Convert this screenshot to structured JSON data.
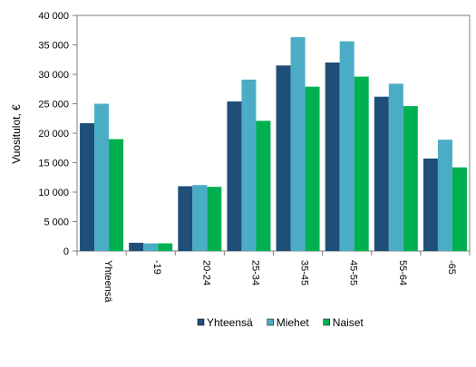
{
  "chart_data": {
    "type": "bar",
    "title": "",
    "xlabel": "",
    "ylabel": "Vuositulot, €",
    "ylim": [
      0,
      40000
    ],
    "yticks": [
      "0",
      "5 000",
      "10 000",
      "15 000",
      "20 000",
      "25 000",
      "30 000",
      "35 000",
      "40 000"
    ],
    "grid": false,
    "legend_position": "bottom",
    "categories": [
      "Yhteensä",
      "-19",
      "20-24",
      "25-34",
      "35-45",
      "45-55",
      "55-64",
      "-65"
    ],
    "series": [
      {
        "name": "Yhteensä",
        "color": "#1f4e79",
        "values": [
          21700,
          1400,
          11000,
          25400,
          31500,
          32000,
          26200,
          15700
        ]
      },
      {
        "name": "Miehet",
        "color": "#4bacc6",
        "values": [
          25000,
          1300,
          11200,
          29100,
          36300,
          35600,
          28400,
          18900
        ]
      },
      {
        "name": "Naiset",
        "color": "#00b050",
        "values": [
          19000,
          1300,
          10900,
          22100,
          27900,
          29600,
          24600,
          14200
        ]
      }
    ]
  }
}
